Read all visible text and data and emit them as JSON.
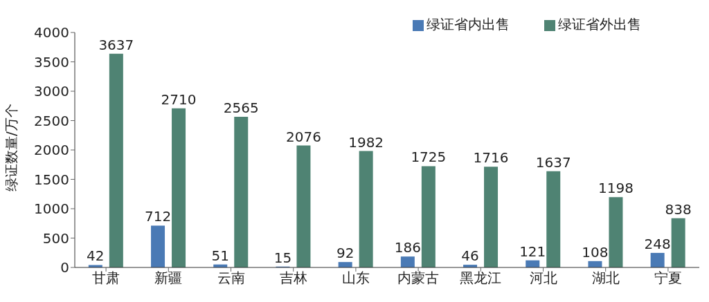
{
  "chart_data": {
    "type": "bar",
    "ylabel": "绿证数量/万个",
    "categories": [
      "甘肃",
      "新疆",
      "云南",
      "吉林",
      "山东",
      "内蒙古",
      "黑龙江",
      "河北",
      "湖北",
      "宁夏"
    ],
    "series": [
      {
        "name": "绿证省内出售",
        "color": "#4a7ab5",
        "values": [
          42,
          712,
          51,
          15,
          92,
          186,
          46,
          121,
          108,
          248
        ]
      },
      {
        "name": "绿证省外出售",
        "color": "#4f8373",
        "values": [
          3637,
          2710,
          2565,
          2076,
          1982,
          1725,
          1716,
          1637,
          1198,
          838
        ]
      }
    ],
    "ylim": [
      0,
      4000
    ],
    "yticks": [
      0,
      500,
      1000,
      1500,
      2000,
      2500,
      3000,
      3500,
      4000
    ],
    "data_labels": true,
    "legend": "top right",
    "grid": false
  }
}
